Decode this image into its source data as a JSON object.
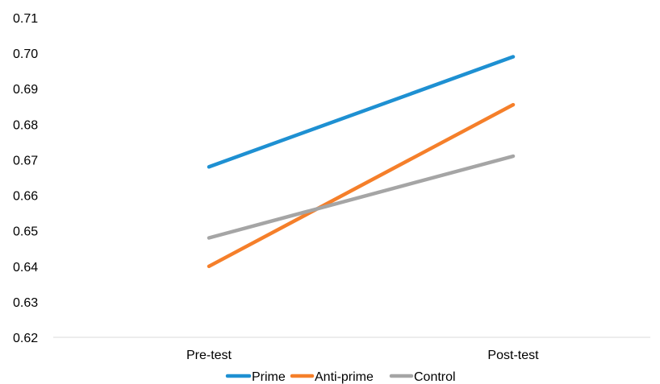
{
  "chart_data": {
    "type": "line",
    "title": "",
    "xlabel": "",
    "ylabel": "",
    "categories": [
      "Pre-test",
      "Post-test"
    ],
    "ylim": [
      0.62,
      0.71
    ],
    "yticks": [
      "0.62",
      "0.63",
      "0.64",
      "0.65",
      "0.66",
      "0.67",
      "0.68",
      "0.69",
      "0.70",
      "0.71"
    ],
    "grid": false,
    "legend_position": "bottom",
    "series": [
      {
        "name": "Prime",
        "color": "#1E90D2",
        "values": [
          0.668,
          0.699
        ]
      },
      {
        "name": "Anti-prime",
        "color": "#F57F2A",
        "values": [
          0.64,
          0.6855
        ]
      },
      {
        "name": "Control",
        "color": "#A5A5A5",
        "values": [
          0.648,
          0.671
        ]
      }
    ]
  }
}
